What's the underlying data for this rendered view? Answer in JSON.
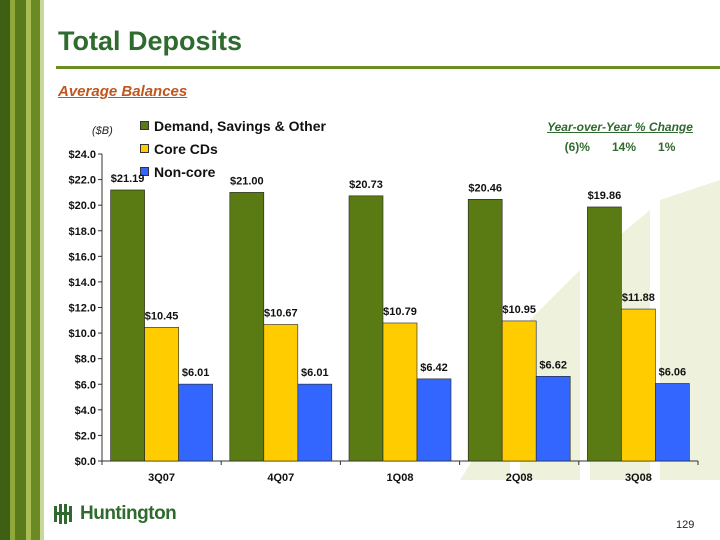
{
  "slide": {
    "title": "Total Deposits",
    "subtitle": "Average Balances",
    "unit_label": "($B)",
    "page_number": "129",
    "logo_text": "Huntington"
  },
  "yoy": {
    "title": "Year-over-Year % Change",
    "values": [
      "(6)%",
      "14%",
      "1%"
    ]
  },
  "colors": {
    "demand": "#5a7a14",
    "core": "#ffcc00",
    "noncore": "#3366ff",
    "title_green": "#2f6a2f",
    "subtitle_orange": "#c0561f"
  },
  "chart_data": {
    "type": "bar",
    "categories": [
      "3Q07",
      "4Q07",
      "1Q08",
      "2Q08",
      "3Q08"
    ],
    "series": [
      {
        "name": "Demand, Savings & Other",
        "values": [
          21.19,
          21.0,
          20.73,
          20.46,
          19.86
        ],
        "labels": [
          "$21.19",
          "$21.00",
          "$20.73",
          "$20.46",
          "$19.86"
        ]
      },
      {
        "name": "Core CDs",
        "values": [
          10.45,
          10.67,
          10.79,
          10.95,
          11.88
        ],
        "labels": [
          "$10.45",
          "$10.67",
          "$10.79",
          "$10.95",
          "$11.88"
        ]
      },
      {
        "name": "Non-core",
        "values": [
          6.01,
          6.01,
          6.42,
          6.62,
          6.06
        ],
        "labels": [
          "$6.01",
          "$6.01",
          "$6.42",
          "$6.62",
          "$6.06"
        ]
      }
    ],
    "ylim": [
      0,
      24
    ],
    "yticks": [
      "$0.0",
      "$2.0",
      "$4.0",
      "$6.0",
      "$8.0",
      "$10.0",
      "$12.0",
      "$14.0",
      "$16.0",
      "$18.0",
      "$20.0",
      "$22.0",
      "$24.0"
    ],
    "ylabel": "($B)",
    "legend": "top-left",
    "grid": false
  }
}
